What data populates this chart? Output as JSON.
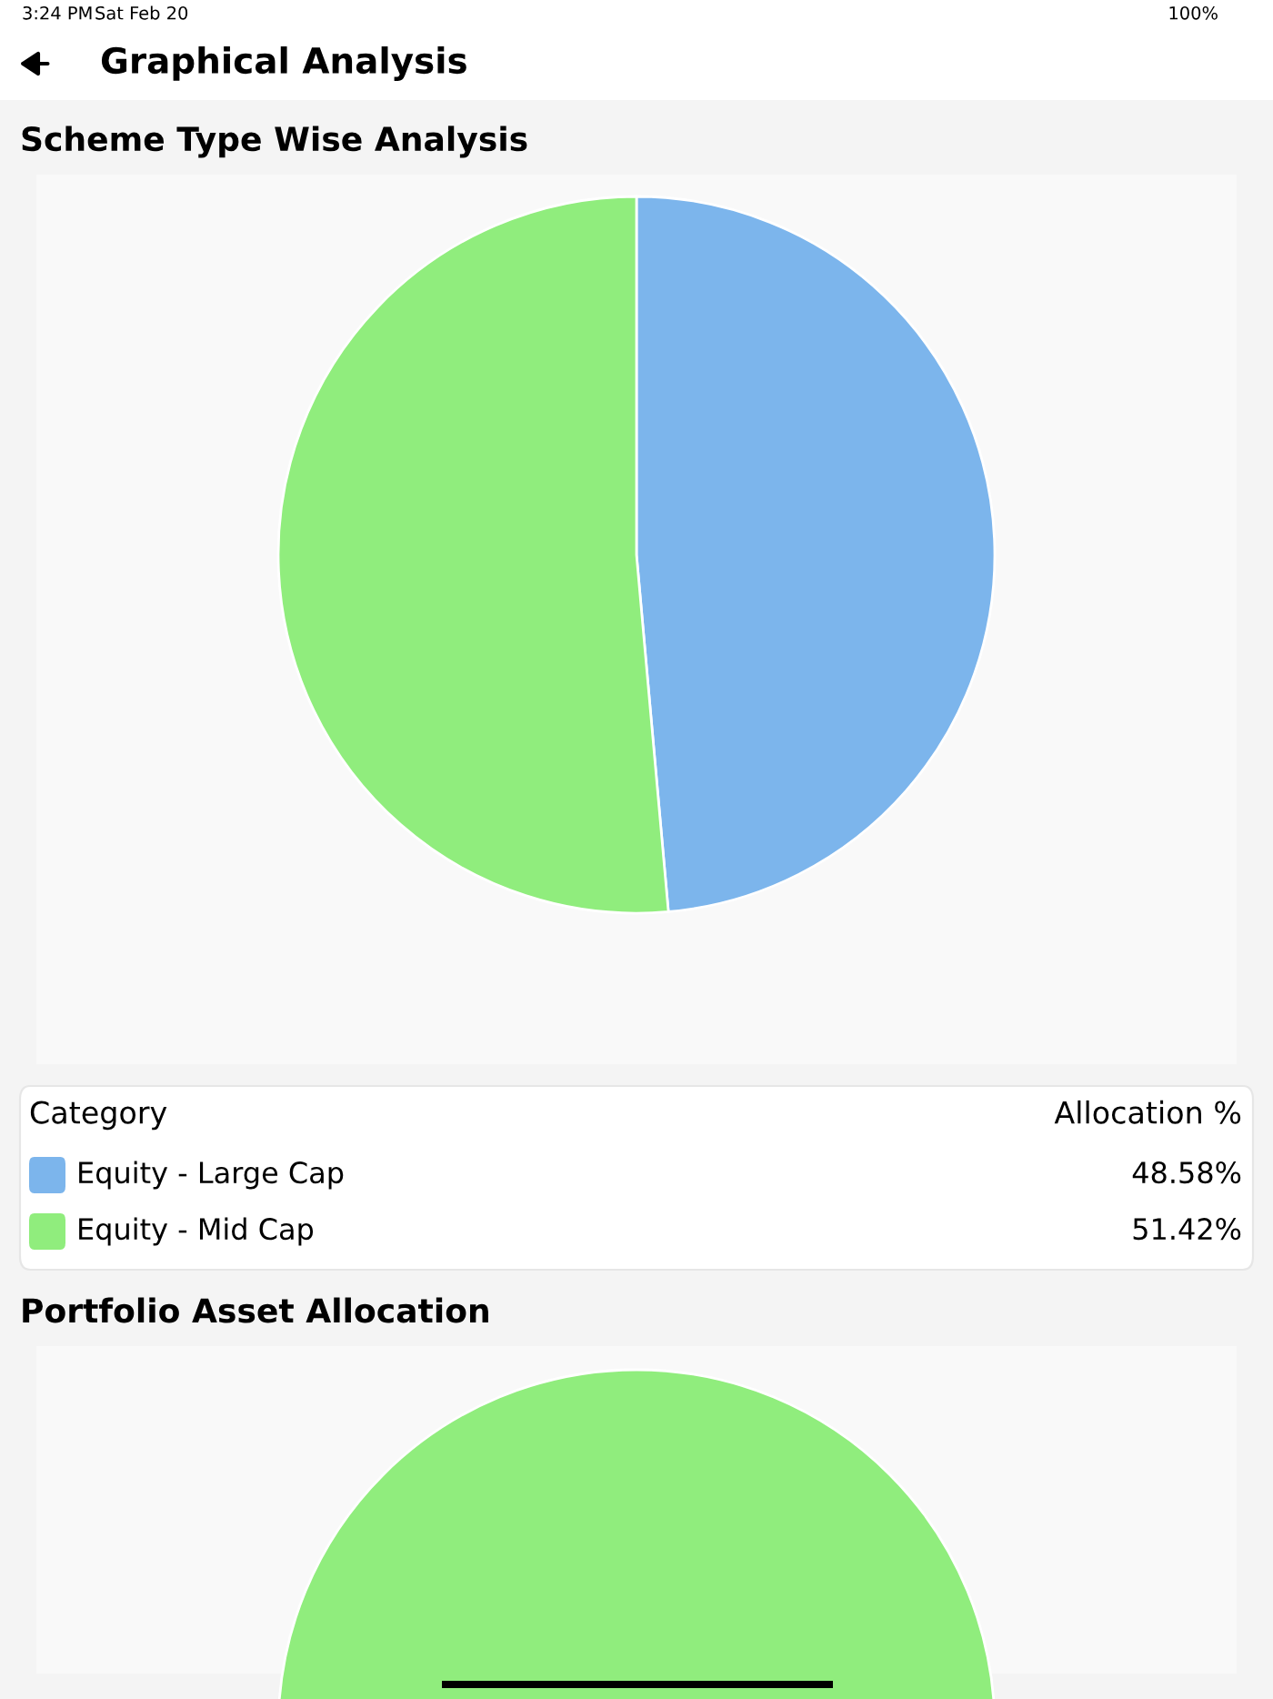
{
  "chart_data": [
    {
      "type": "pie",
      "title": "Scheme Type Wise Analysis",
      "legend_title": "Category",
      "categories": [
        "Equity - Large Cap",
        "Equity - Mid Cap"
      ],
      "values": [
        48.58,
        51.42
      ],
      "colors": [
        "#7cb5ec",
        "#90ed7d"
      ],
      "value_labels": [
        "48.58%",
        "51.42%"
      ],
      "legend": "bottom",
      "annotations": [
        "Allocation %",
        "3:24 PM",
        "Sat Feb 20",
        "100%",
        "Graphical Analysis"
      ]
    },
    {
      "type": "pie",
      "title": "Portfolio Asset Allocation",
      "categories": [
        null
      ],
      "values": [
        100
      ],
      "colors": [
        "#90ed7d"
      ]
    }
  ]
}
